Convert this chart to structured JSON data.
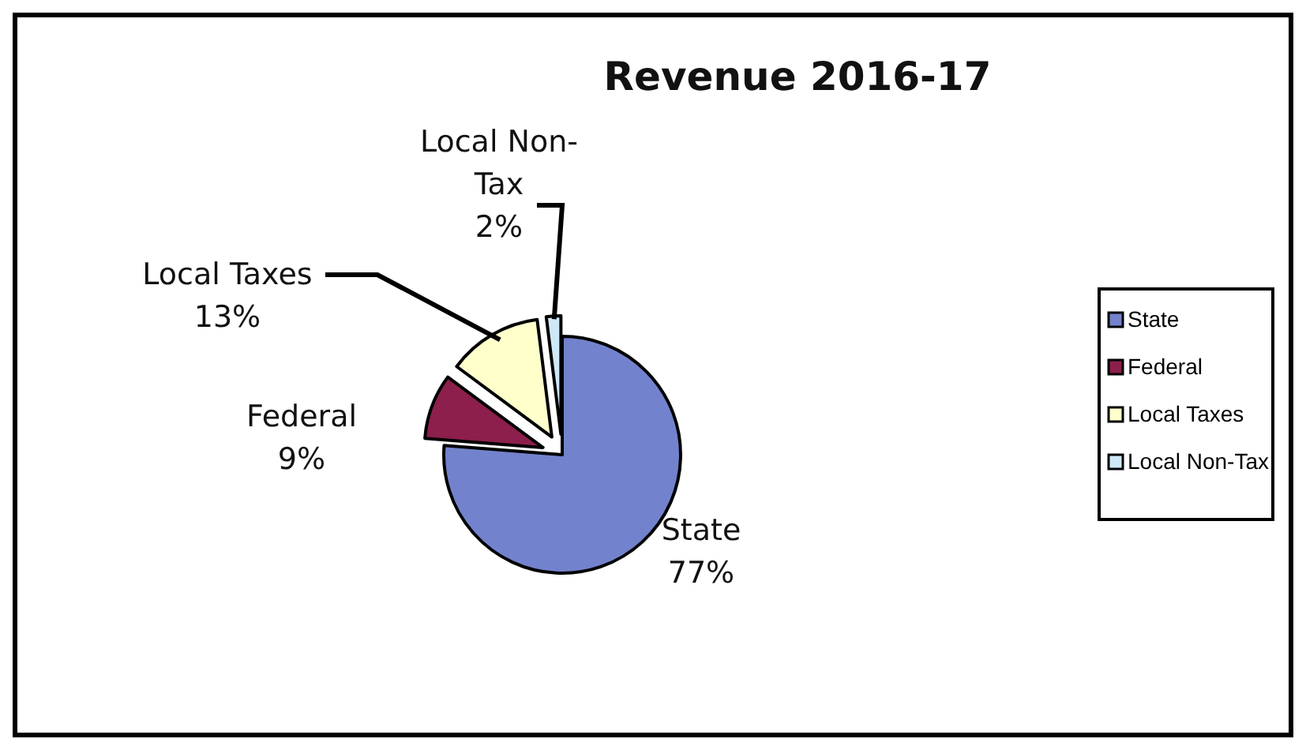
{
  "chart_data": {
    "type": "pie",
    "title": "Revenue  2016-17",
    "categories": [
      "State",
      "Federal",
      "Local Taxes",
      "Local Non-Tax"
    ],
    "values": [
      77,
      9,
      13,
      2
    ],
    "colors": [
      "#7282cc",
      "#8c1f4c",
      "#ffffcc",
      "#cfe8f8"
    ],
    "value_labels": [
      "77%",
      "9%",
      "13%",
      "2%"
    ],
    "legend": "right"
  }
}
